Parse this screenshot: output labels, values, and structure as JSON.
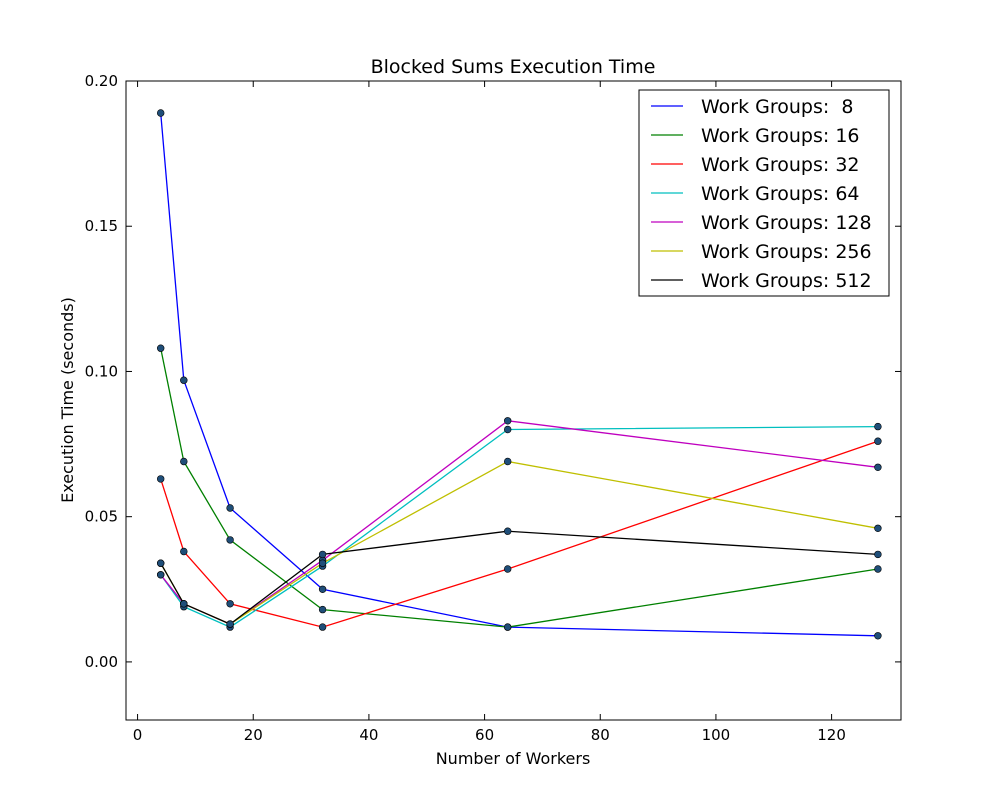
{
  "chart_data": {
    "type": "line",
    "title": "Blocked Sums Execution Time",
    "xlabel": "Number of Workers",
    "ylabel": "Execution Time (seconds)",
    "xlim": [
      -2,
      132
    ],
    "ylim": [
      -0.02,
      0.2
    ],
    "xticks": [
      0,
      20,
      40,
      60,
      80,
      100,
      120
    ],
    "yticks": [
      0.0,
      0.05,
      0.1,
      0.15,
      0.2
    ],
    "xtick_labels": [
      "0",
      "20",
      "40",
      "60",
      "80",
      "100",
      "120"
    ],
    "ytick_labels": [
      "0.00",
      "0.05",
      "0.10",
      "0.15",
      "0.20"
    ],
    "legend_placement": "top-right",
    "grid": false,
    "marker_color": "#1f4e79",
    "x": [
      4,
      8,
      16,
      32,
      64,
      128
    ],
    "series": [
      {
        "name": "Work Groups:  8",
        "color": "#0000ff",
        "values": [
          0.189,
          0.097,
          0.053,
          0.025,
          0.012,
          0.009
        ]
      },
      {
        "name": "Work Groups: 16",
        "color": "#008000",
        "values": [
          0.108,
          0.069,
          0.042,
          0.018,
          0.012,
          0.032
        ]
      },
      {
        "name": "Work Groups: 32",
        "color": "#ff0000",
        "values": [
          0.063,
          0.038,
          0.02,
          0.012,
          0.032,
          0.076
        ]
      },
      {
        "name": "Work Groups: 64",
        "color": "#00bfbf",
        "values": [
          0.03,
          0.019,
          0.012,
          0.033,
          0.08,
          0.081
        ]
      },
      {
        "name": "Work Groups: 128",
        "color": "#bf00bf",
        "values": [
          0.03,
          0.02,
          0.013,
          0.035,
          0.083,
          0.067
        ]
      },
      {
        "name": "Work Groups: 256",
        "color": "#bfbf00",
        "values": [
          0.034,
          0.02,
          0.013,
          0.034,
          0.069,
          0.046
        ]
      },
      {
        "name": "Work Groups: 512",
        "color": "#000000",
        "values": [
          0.034,
          0.02,
          0.013,
          0.037,
          0.045,
          0.037
        ]
      }
    ]
  }
}
